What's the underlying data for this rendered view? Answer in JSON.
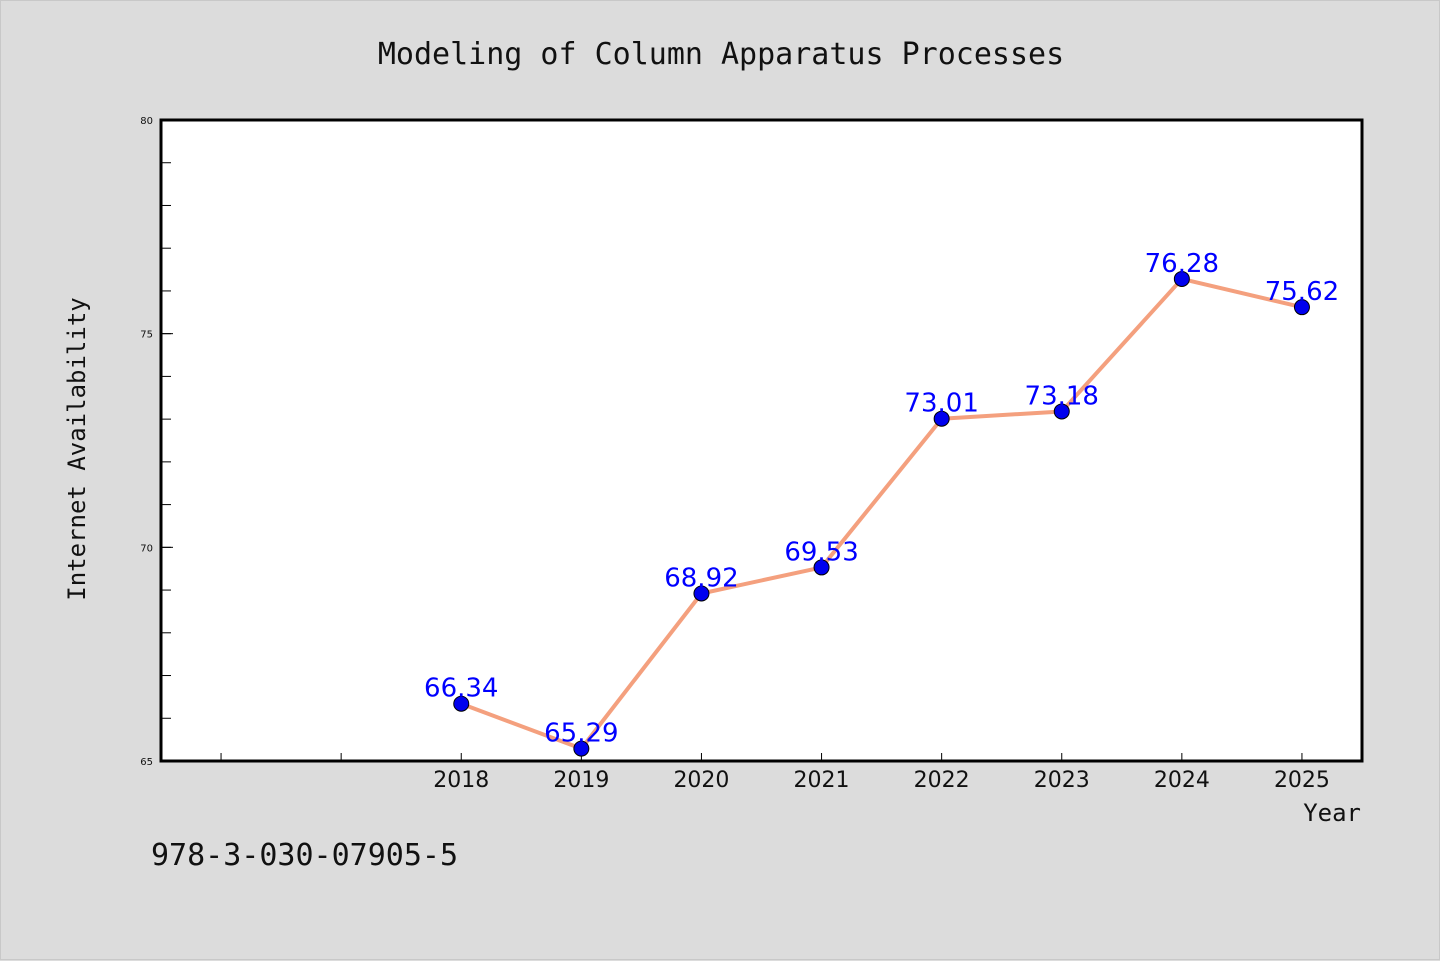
{
  "footer": {
    "code": "978-3-030-07905-5"
  },
  "chart_data": {
    "type": "line",
    "title": "Modeling of Column Apparatus Processes",
    "xlabel": "Year",
    "ylabel": "Internet Availability",
    "x": [
      "2018",
      "2019",
      "2020",
      "2021",
      "2022",
      "2023",
      "2024",
      "2025"
    ],
    "series": [
      {
        "values": [
          66.34,
          65.29,
          68.92,
          69.53,
          73.01,
          73.18,
          76.28,
          75.62
        ],
        "data_labels": [
          "66.34",
          "65.29",
          "68.92",
          "69.53",
          "73.01",
          "73.18",
          "76.28",
          "75.62"
        ],
        "line_color": "#f4a07e",
        "marker_color": "#0000ee"
      }
    ],
    "xlim": [
      2015.5,
      2025.5
    ],
    "ylim": [
      65,
      80
    ],
    "y_ticks": [
      65,
      70,
      75,
      80
    ],
    "y_tick_labels": [
      "65",
      "70",
      "75",
      "80"
    ],
    "y_minor_step": 1,
    "x_extra_ticks": [
      2016,
      2017
    ],
    "grid": false,
    "legend": "none",
    "label_color": "#0000ff",
    "background": "#dcdcdc",
    "plot_background": "#ffffff"
  }
}
